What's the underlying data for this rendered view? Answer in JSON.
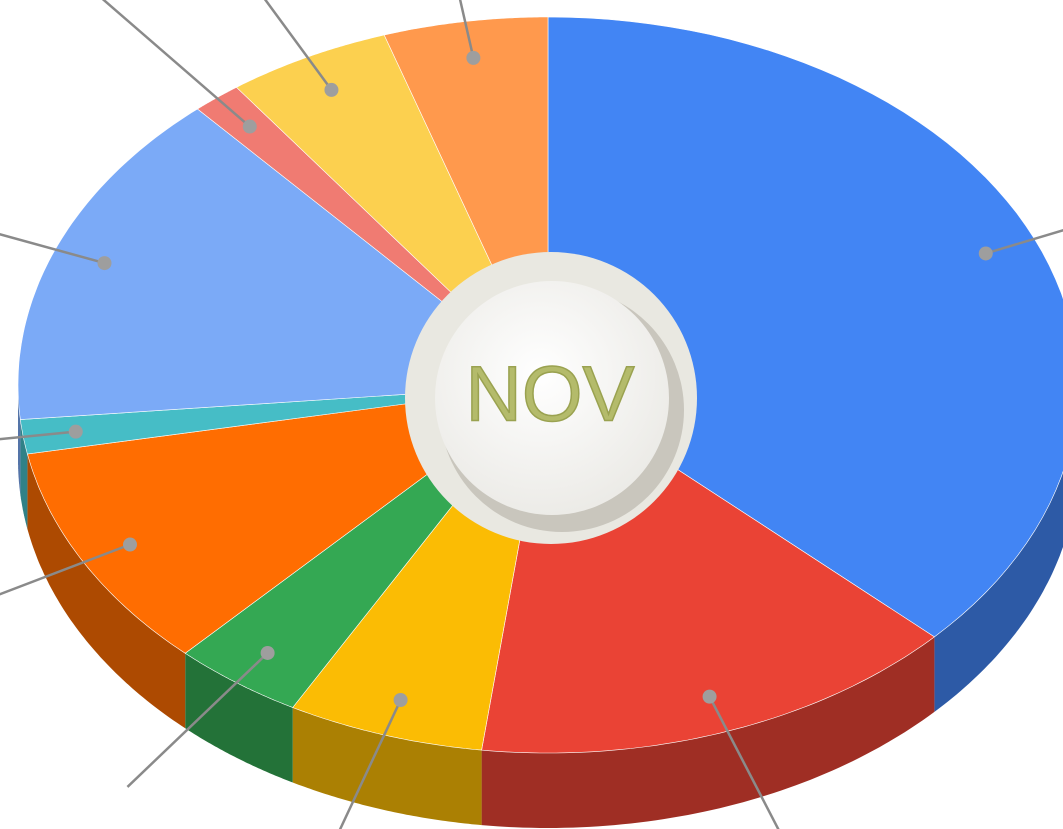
{
  "chart_data": {
    "type": "pie3d",
    "values": [
      37,
      15,
      6,
      4,
      10,
      1.5,
      15,
      1.5,
      5,
      5
    ],
    "colors": [
      "#4285f4",
      "#ea4335",
      "#fbbc04",
      "#34a853",
      "#ff6d01",
      "#46bdc6",
      "#7baaf7",
      "#f07b72",
      "#fcd04f",
      "#ff994d"
    ],
    "center_label": "NOV"
  }
}
